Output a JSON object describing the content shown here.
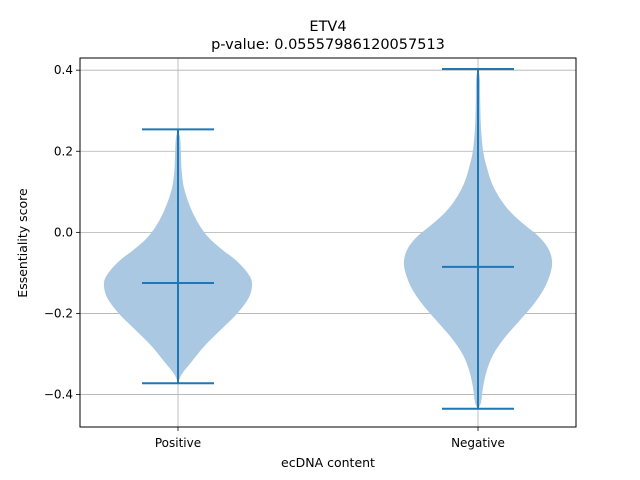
{
  "chart_data": {
    "type": "violin",
    "title": "ETV4",
    "subtitle": "p-value: 0.05557986120057513",
    "xlabel": "ecDNA content",
    "ylabel": "Essentiality score",
    "categories": [
      "Positive",
      "Negative"
    ],
    "ylim": [
      -0.48,
      0.43
    ],
    "yticks": [
      -0.4,
      -0.2,
      0.0,
      0.2,
      0.4
    ],
    "ytick_labels": [
      "−0.4",
      "−0.2",
      "0.0",
      "0.2",
      "0.4"
    ],
    "grid": true,
    "colors": {
      "body": "#aac8e2",
      "lines": "#1f77b4",
      "grid": "#b0b0b0"
    },
    "violins": [
      {
        "category": "Positive",
        "min": -0.372,
        "median": -0.125,
        "max": 0.254,
        "density": [
          [
            -0.372,
            0.0
          ],
          [
            -0.35,
            0.05
          ],
          [
            -0.32,
            0.18
          ],
          [
            -0.28,
            0.36
          ],
          [
            -0.24,
            0.58
          ],
          [
            -0.2,
            0.8
          ],
          [
            -0.16,
            0.96
          ],
          [
            -0.125,
            1.0
          ],
          [
            -0.1,
            0.94
          ],
          [
            -0.07,
            0.79
          ],
          [
            -0.04,
            0.58
          ],
          [
            -0.01,
            0.4
          ],
          [
            0.03,
            0.25
          ],
          [
            0.07,
            0.15
          ],
          [
            0.11,
            0.08
          ],
          [
            0.15,
            0.05
          ],
          [
            0.19,
            0.04
          ],
          [
            0.23,
            0.03
          ],
          [
            0.254,
            0.0
          ]
        ]
      },
      {
        "category": "Negative",
        "min": -0.435,
        "median": -0.085,
        "max": 0.403,
        "density": [
          [
            -0.435,
            0.0
          ],
          [
            -0.42,
            0.04
          ],
          [
            -0.38,
            0.07
          ],
          [
            -0.34,
            0.12
          ],
          [
            -0.3,
            0.21
          ],
          [
            -0.26,
            0.36
          ],
          [
            -0.22,
            0.55
          ],
          [
            -0.18,
            0.74
          ],
          [
            -0.14,
            0.89
          ],
          [
            -0.1,
            0.98
          ],
          [
            -0.07,
            1.0
          ],
          [
            -0.04,
            0.95
          ],
          [
            -0.01,
            0.82
          ],
          [
            0.02,
            0.62
          ],
          [
            0.05,
            0.44
          ],
          [
            0.08,
            0.31
          ],
          [
            0.12,
            0.19
          ],
          [
            0.16,
            0.12
          ],
          [
            0.2,
            0.07
          ],
          [
            0.26,
            0.04
          ],
          [
            0.32,
            0.03
          ],
          [
            0.38,
            0.025
          ],
          [
            0.403,
            0.0
          ]
        ]
      }
    ]
  }
}
